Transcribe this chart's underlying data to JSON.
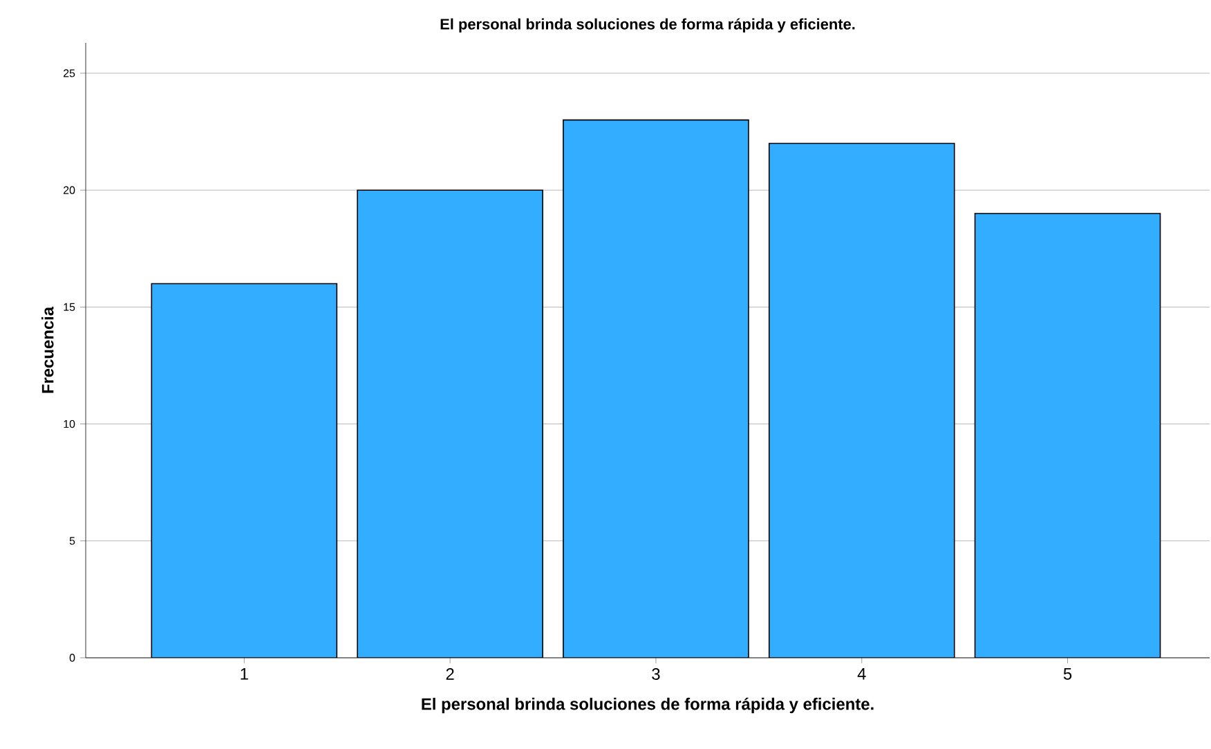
{
  "chart_data": {
    "type": "bar",
    "title": "El personal brinda soluciones de forma rápida y eficiente.",
    "xlabel": "El personal brinda soluciones de forma rápida y eficiente.",
    "ylabel": "Frecuencia",
    "categories": [
      "1",
      "2",
      "3",
      "4",
      "5"
    ],
    "values": [
      16,
      20,
      23,
      22,
      19
    ],
    "color": "#33adff",
    "ylim": [
      0,
      26.3
    ],
    "yticks": [
      0,
      5,
      10,
      15,
      20,
      25
    ],
    "grid": "y"
  }
}
